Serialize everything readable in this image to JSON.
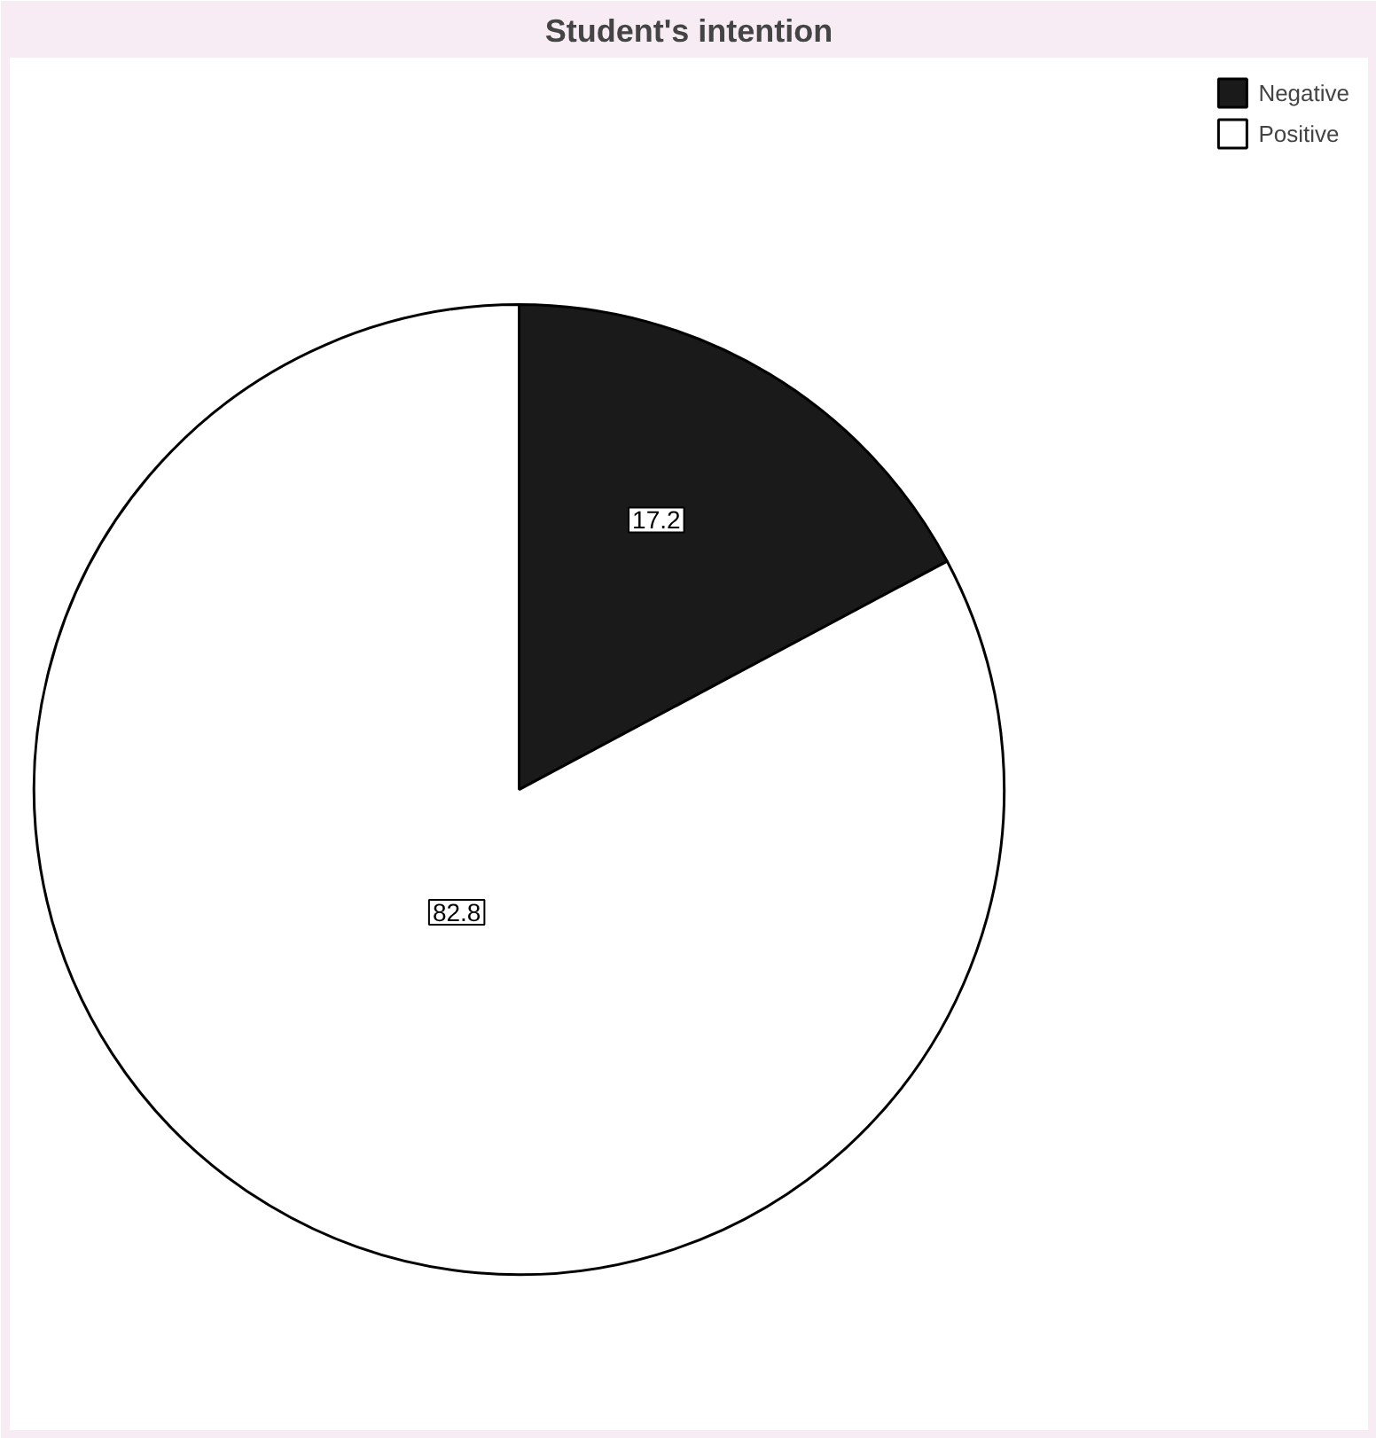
{
  "chart_data": {
    "type": "pie",
    "title": "Student's intention",
    "categories": [
      "Negative",
      "Positive"
    ],
    "values": [
      17.2,
      82.8
    ],
    "colors": [
      "#1a1a1a",
      "#ffffff"
    ],
    "data_labels": true,
    "legend": "top right"
  }
}
